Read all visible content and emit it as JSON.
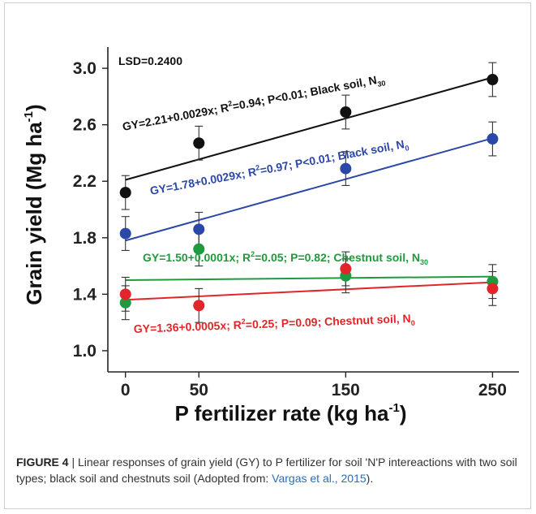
{
  "chart_data": {
    "type": "scatter",
    "xlabel": "P fertilizer rate (kg ha",
    "xlabel_sup": "-1",
    "xlabel_end": ")",
    "ylabel": "Grain yield (Mg ha",
    "ylabel_sup": "-1",
    "ylabel_end": ")",
    "x_categories": [
      "0",
      "50",
      "150",
      "250"
    ],
    "x_positions": [
      0,
      50,
      150,
      250
    ],
    "y_ticks": [
      "1.0",
      "1.4",
      "1.8",
      "2.2",
      "2.6",
      "3.0"
    ],
    "ylim": [
      0.85,
      3.15
    ],
    "xlim": [
      -12,
      268
    ],
    "lsd_label": "LSD=0.2400",
    "series": [
      {
        "id": "black_n30",
        "color": "#111111",
        "points": [
          [
            0,
            2.12
          ],
          [
            50,
            2.47
          ],
          [
            150,
            2.69
          ],
          [
            250,
            2.92
          ]
        ],
        "errors": [
          0.12,
          0.12,
          0.12,
          0.12
        ],
        "fit": [
          2.21,
          0.0029
        ],
        "equation": {
          "pre": "GY=2.21+0.0029x; R",
          "sup": "2",
          "mid": "=0.94; P<0.01; Black soil, N",
          "sub": "30"
        }
      },
      {
        "id": "black_n0",
        "color": "#2b47a8",
        "points": [
          [
            0,
            1.83
          ],
          [
            50,
            1.86
          ],
          [
            150,
            2.29
          ],
          [
            250,
            2.5
          ]
        ],
        "errors": [
          0.12,
          0.12,
          0.12,
          0.12
        ],
        "fit": [
          1.78,
          0.0029
        ],
        "equation": {
          "pre": "GY=1.78+0.0029x; R",
          "sup": "2",
          "mid": "=0.97; P<0.01; Black soil, N",
          "sub": "0"
        }
      },
      {
        "id": "chestnut_n30",
        "color": "#1f9a3e",
        "points": [
          [
            0,
            1.34
          ],
          [
            50,
            1.72
          ],
          [
            150,
            1.53
          ],
          [
            250,
            1.49
          ]
        ],
        "errors": [
          0.12,
          0.12,
          0.12,
          0.12
        ],
        "fit": [
          1.5,
          0.0001
        ],
        "equation": {
          "pre": "GY=1.50+0.0001x; R",
          "sup": "2",
          "mid": "=0.05; P=0.82; Chestnut soil, N",
          "sub": "30"
        }
      },
      {
        "id": "chestnut_n0",
        "color": "#e0262a",
        "points": [
          [
            0,
            1.4
          ],
          [
            50,
            1.32
          ],
          [
            150,
            1.58
          ],
          [
            250,
            1.44
          ]
        ],
        "errors": [
          0.12,
          0.12,
          0.12,
          0.12
        ],
        "fit": [
          1.36,
          0.0005
        ],
        "equation": {
          "pre": "GY=1.36+0.0005x; R",
          "sup": "2",
          "mid": "=0.25; P=0.09; Chestnut soil, N",
          "sub": "0"
        }
      }
    ]
  },
  "caption": {
    "label": "FIGURE 4",
    "separator": " | ",
    "text": "Linear responses of grain yield (GY) to P fertilizer for soil 'N'P intereactions with two soil types; black soil and chestnuts soil (Adopted from: ",
    "reference": "Vargas et al., 2015",
    "end": ")."
  }
}
